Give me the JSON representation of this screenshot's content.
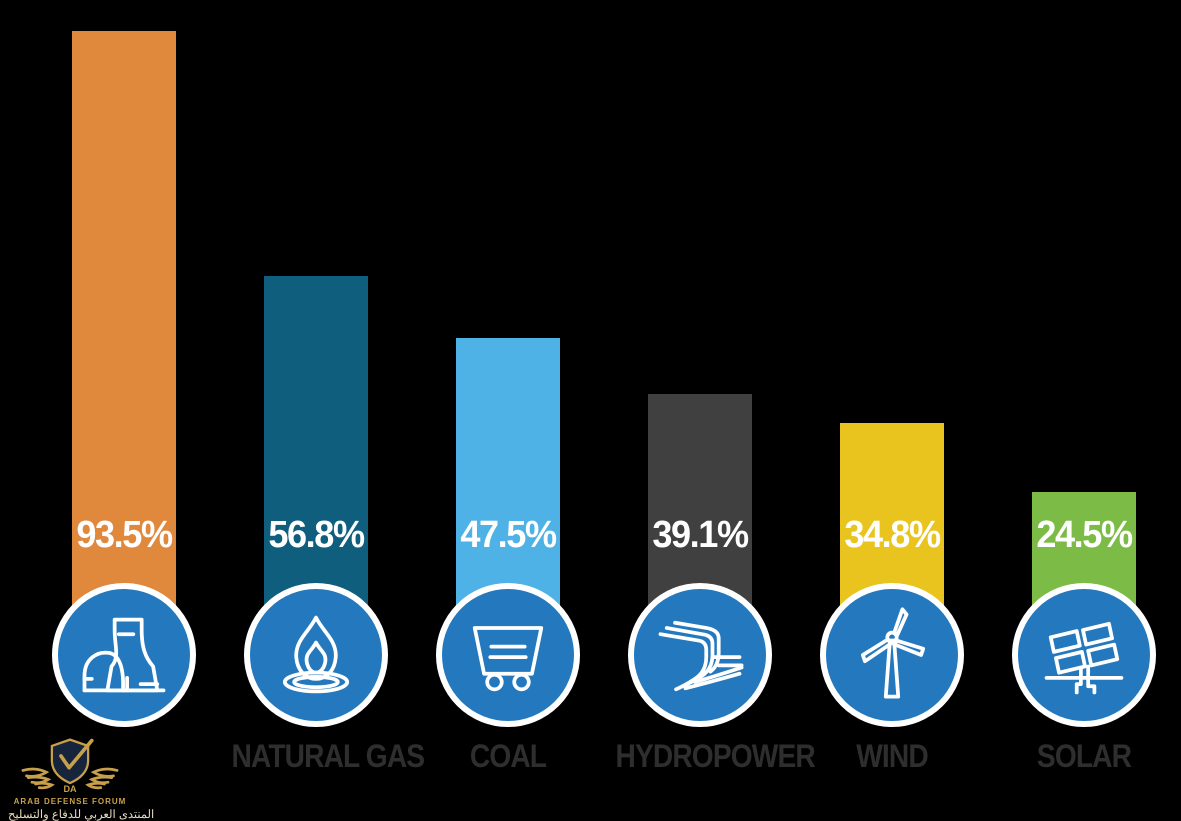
{
  "background_color": "#000000",
  "chart_data": {
    "type": "bar",
    "title": "",
    "xlabel": "",
    "ylabel": "",
    "unit": "%",
    "ylim": [
      0,
      100
    ],
    "grid": false,
    "legend": "none",
    "categories": [
      "",
      "NATURAL GAS",
      "COAL",
      "HYDROPOWER",
      "WIND",
      "SOLAR"
    ],
    "values": [
      93.5,
      56.8,
      47.5,
      39.1,
      34.8,
      24.5
    ],
    "value_labels": [
      "93.5%",
      "56.8%",
      "47.5%",
      "39.1%",
      "34.8%",
      "24.5%"
    ],
    "bar_colors": [
      "#E0883C",
      "#0F5E7D",
      "#4FB2E6",
      "#404040",
      "#EAC41E",
      "#7CBB45"
    ],
    "icons": [
      "nuclear-plant",
      "gas-flame",
      "coal-cart",
      "hydro-dam",
      "wind-turbine",
      "solar-panel"
    ],
    "icon_circle_color": "#2478BE",
    "icon_circle_border_color": "#FFFFFF",
    "value_text_color": "#FFFFFF",
    "category_label_color": "#2E2E2E"
  },
  "watermark": {
    "line1": "ARAB DEFENSE FORUM",
    "line2": "المنتدى العربي للدفاع والتسليح",
    "monogram": "DA",
    "gold_color": "#C8A04B",
    "navy_color": "#16243C"
  }
}
